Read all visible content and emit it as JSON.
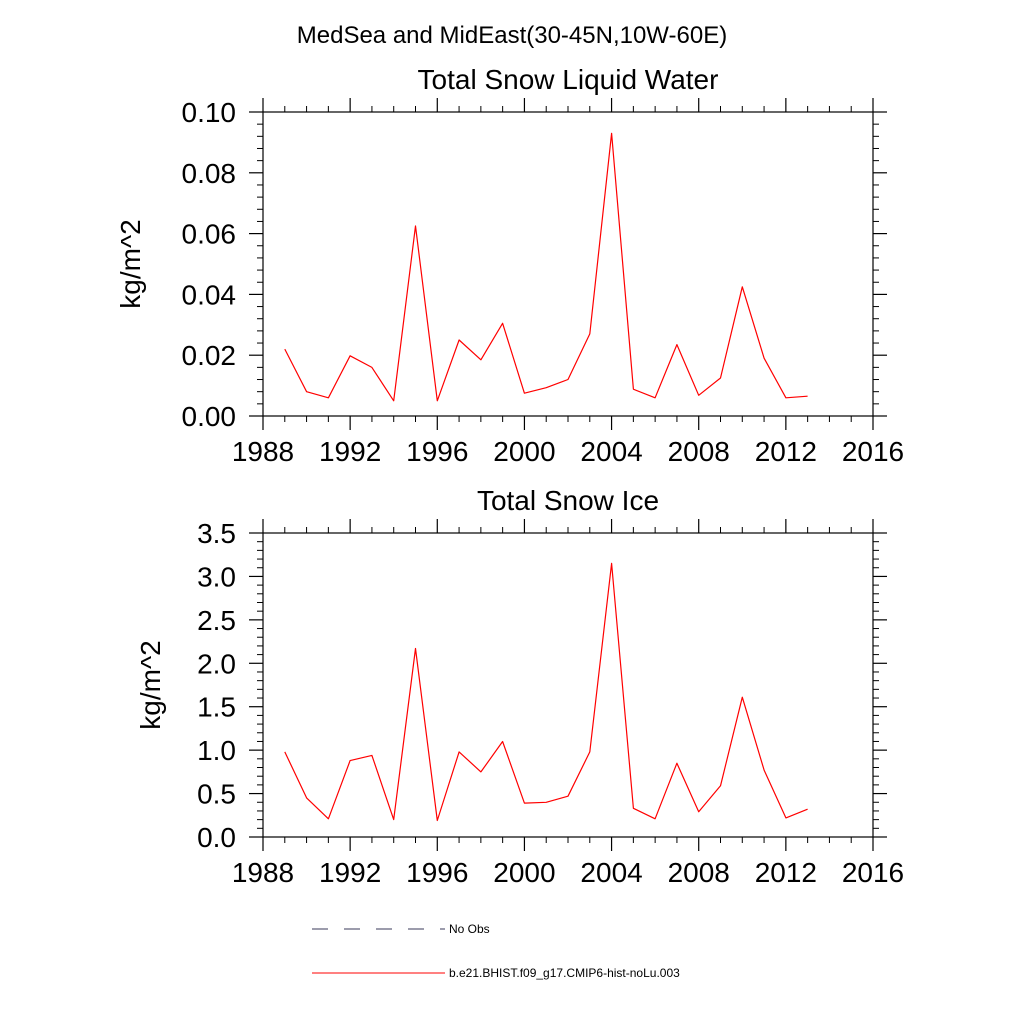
{
  "figure": {
    "title": "MedSea and MidEast(30-45N,10W-60E)"
  },
  "colors": {
    "series_line": "#ff0000",
    "obs_line": "#3a3a5a",
    "axis": "#000000"
  },
  "legend": {
    "placement": "bottom",
    "entries": [
      {
        "label": "No Obs",
        "style": "dashed"
      },
      {
        "label": "b.e21.BHIST.f09_g17.CMIP6-hist-noLu.003",
        "style": "solid"
      }
    ]
  },
  "chart_data": [
    {
      "type": "line",
      "title": "Total Snow Liquid Water",
      "xlabel": "",
      "ylabel": "kg/m^2",
      "xlim": [
        1988,
        2016
      ],
      "ylim": [
        0,
        0.1
      ],
      "xticks": [
        1988,
        1992,
        1996,
        2000,
        2004,
        2008,
        2012,
        2016
      ],
      "xtick_labels": [
        "1988",
        "1992",
        "1996",
        "2000",
        "2004",
        "2008",
        "2012",
        "2016"
      ],
      "yticks": [
        0,
        0.02,
        0.04,
        0.06,
        0.08,
        0.1
      ],
      "ytick_labels": [
        "0.00",
        "0.02",
        "0.04",
        "0.06",
        "0.08",
        "0.10"
      ],
      "grid": false,
      "series": [
        {
          "name": "b.e21.BHIST.f09_g17.CMIP6-hist-noLu.003",
          "color": "#ff0000",
          "x": [
            1989,
            1990,
            1991,
            1992,
            1993,
            1994,
            1995,
            1996,
            1997,
            1998,
            1999,
            2000,
            2001,
            2002,
            2003,
            2004,
            2005,
            2006,
            2007,
            2008,
            2009,
            2010,
            2011,
            2012,
            2013
          ],
          "y": [
            0.022,
            0.008,
            0.006,
            0.0198,
            0.016,
            0.005,
            0.0625,
            0.005,
            0.025,
            0.0185,
            0.0305,
            0.0075,
            0.0093,
            0.012,
            0.027,
            0.093,
            0.0088,
            0.006,
            0.0235,
            0.0068,
            0.0125,
            0.0425,
            0.019,
            0.006,
            0.0065
          ]
        }
      ]
    },
    {
      "type": "line",
      "title": "Total Snow Ice",
      "xlabel": "",
      "ylabel": "kg/m^2",
      "xlim": [
        1988,
        2016
      ],
      "ylim": [
        0,
        3.5
      ],
      "xticks": [
        1988,
        1992,
        1996,
        2000,
        2004,
        2008,
        2012,
        2016
      ],
      "xtick_labels": [
        "1988",
        "1992",
        "1996",
        "2000",
        "2004",
        "2008",
        "2012",
        "2016"
      ],
      "yticks": [
        0,
        0.5,
        1,
        1.5,
        2,
        2.5,
        3,
        3.5
      ],
      "ytick_labels": [
        "0.0",
        "0.5",
        "1.0",
        "1.5",
        "2.0",
        "2.5",
        "3.0",
        "3.5"
      ],
      "grid": false,
      "series": [
        {
          "name": "b.e21.BHIST.f09_g17.CMIP6-hist-noLu.003",
          "color": "#ff0000",
          "x": [
            1989,
            1990,
            1991,
            1992,
            1993,
            1994,
            1995,
            1996,
            1997,
            1998,
            1999,
            2000,
            2001,
            2002,
            2003,
            2004,
            2005,
            2006,
            2007,
            2008,
            2009,
            2010,
            2011,
            2012,
            2013
          ],
          "y": [
            0.98,
            0.45,
            0.21,
            0.88,
            0.94,
            0.2,
            2.17,
            0.19,
            0.98,
            0.75,
            1.1,
            0.39,
            0.4,
            0.47,
            0.98,
            3.15,
            0.33,
            0.21,
            0.85,
            0.29,
            0.59,
            1.61,
            0.77,
            0.22,
            0.32
          ]
        }
      ]
    }
  ]
}
